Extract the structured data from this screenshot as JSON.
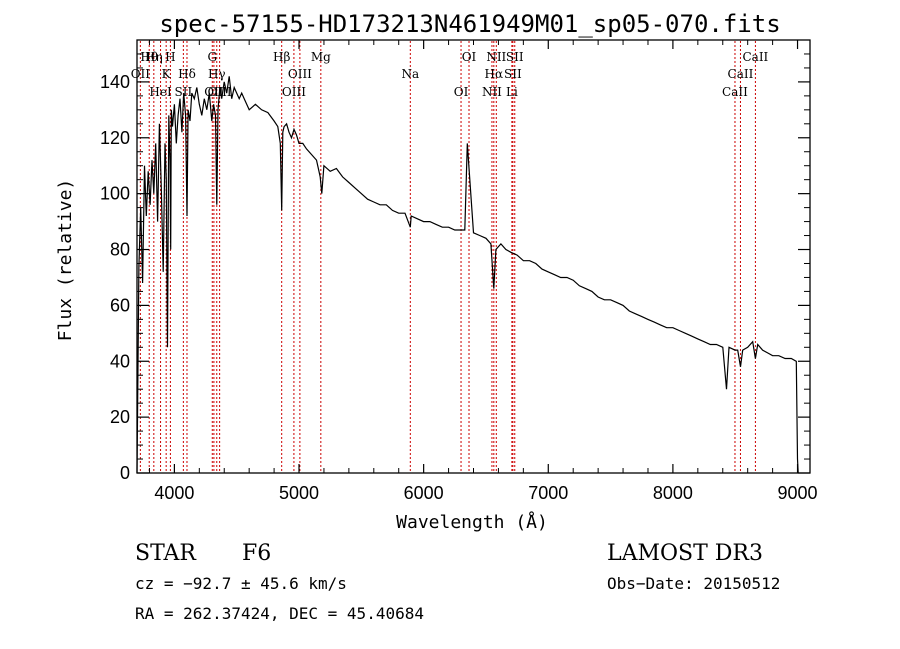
{
  "chart_data": {
    "type": "line",
    "title": "spec-57155-HD173213N461949M01_sp05-070.fits",
    "xlabel": "Wavelength (Å)",
    "ylabel": "Flux (relative)",
    "xlim": [
      3700,
      9100
    ],
    "ylim": [
      0,
      155
    ],
    "xticks": [
      4000,
      5000,
      6000,
      7000,
      8000,
      9000
    ],
    "yticks": [
      0,
      20,
      40,
      60,
      80,
      100,
      120,
      140
    ],
    "series": [
      {
        "name": "Flux",
        "x": [
          3700,
          3715,
          3730,
          3745,
          3760,
          3775,
          3790,
          3805,
          3820,
          3835,
          3850,
          3865,
          3880,
          3895,
          3910,
          3925,
          3935,
          3945,
          3955,
          3965,
          3970,
          3975,
          3985,
          4000,
          4015,
          4030,
          4045,
          4060,
          4075,
          4090,
          4101,
          4110,
          4125,
          4140,
          4160,
          4180,
          4200,
          4220,
          4240,
          4260,
          4280,
          4300,
          4315,
          4330,
          4340,
          4350,
          4365,
          4380,
          4400,
          4420,
          4440,
          4460,
          4480,
          4500,
          4520,
          4540,
          4560,
          4580,
          4600,
          4650,
          4700,
          4750,
          4800,
          4830,
          4850,
          4861,
          4870,
          4880,
          4900,
          4920,
          4940,
          4960,
          4980,
          5000,
          5030,
          5060,
          5100,
          5140,
          5170,
          5183,
          5200,
          5250,
          5300,
          5350,
          5400,
          5450,
          5500,
          5550,
          5600,
          5650,
          5700,
          5750,
          5800,
          5850,
          5893,
          5900,
          5950,
          6000,
          6050,
          6100,
          6150,
          6200,
          6250,
          6300,
          6330,
          6350,
          6400,
          6450,
          6500,
          6540,
          6563,
          6580,
          6620,
          6660,
          6700,
          6750,
          6800,
          6850,
          6900,
          6950,
          7000,
          7050,
          7100,
          7150,
          7200,
          7250,
          7300,
          7350,
          7400,
          7450,
          7500,
          7550,
          7600,
          7650,
          7700,
          7750,
          7800,
          7850,
          7900,
          7950,
          8000,
          8050,
          8100,
          8150,
          8200,
          8250,
          8300,
          8350,
          8400,
          8430,
          8450,
          8498,
          8520,
          8542,
          8560,
          8600,
          8640,
          8662,
          8680,
          8720,
          8760,
          8800,
          8850,
          8900,
          8950,
          8990,
          9000,
          9005
        ],
        "values": [
          0,
          74,
          95,
          68,
          110,
          92,
          108,
          96,
          112,
          100,
          118,
          90,
          125,
          102,
          72,
          118,
          105,
          45,
          128,
          112,
          80,
          130,
          124,
          132,
          118,
          128,
          134,
          122,
          136,
          128,
          92,
          130,
          126,
          136,
          134,
          138,
          132,
          128,
          134,
          130,
          136,
          126,
          132,
          128,
          96,
          130,
          138,
          134,
          140,
          136,
          142,
          134,
          138,
          136,
          134,
          136,
          134,
          132,
          130,
          132,
          130,
          129,
          126,
          124,
          118,
          94,
          122,
          124,
          125,
          122,
          120,
          123,
          121,
          118,
          118,
          116,
          114,
          112,
          106,
          100,
          110,
          108,
          109,
          106,
          104,
          102,
          100,
          98,
          97,
          96,
          96,
          94,
          93,
          93,
          88,
          92,
          91,
          90,
          90,
          89,
          88,
          88,
          87,
          87,
          87,
          118,
          86,
          85,
          84,
          82,
          66,
          80,
          82,
          80,
          79,
          78,
          76,
          76,
          75,
          73,
          72,
          71,
          70,
          70,
          69,
          67,
          66,
          65,
          63,
          62,
          62,
          61,
          60,
          58,
          57,
          56,
          55,
          54,
          53,
          52,
          52,
          51,
          50,
          49,
          48,
          47,
          46,
          46,
          45,
          30,
          45,
          44,
          44,
          38,
          44,
          45,
          47,
          41,
          46,
          44,
          43,
          42,
          42,
          41,
          41,
          40,
          5,
          0
        ]
      }
    ],
    "spectral_lines": [
      {
        "name": "Hθ",
        "wavelength": 3798
      },
      {
        "name": "OII",
        "wavelength": 3727
      },
      {
        "name": "HeI",
        "wavelength": 3889
      },
      {
        "name": "Hη",
        "wavelength": 3835
      },
      {
        "name": "K",
        "wavelength": 3934
      },
      {
        "name": "SII",
        "wavelength": 4072
      },
      {
        "name": "H",
        "wavelength": 3968
      },
      {
        "name": "Hδ",
        "wavelength": 4101
      },
      {
        "name": "OII",
        "wavelength": 4317
      },
      {
        "name": "G",
        "wavelength": 4304
      },
      {
        "name": "Hγ",
        "wavelength": 4340
      },
      {
        "name": "OIII",
        "wavelength": 4363
      },
      {
        "name": "Hβ",
        "wavelength": 4861
      },
      {
        "name": "OIII",
        "wavelength": 5007
      },
      {
        "name": "OIII",
        "wavelength": 4959
      },
      {
        "name": "Mg",
        "wavelength": 5175
      },
      {
        "name": "Na",
        "wavelength": 5893
      },
      {
        "name": "OI",
        "wavelength": 6300
      },
      {
        "name": "OI",
        "wavelength": 6364
      },
      {
        "name": "Hα",
        "wavelength": 6563
      },
      {
        "name": "NII",
        "wavelength": 6548
      },
      {
        "name": "NII",
        "wavelength": 6583
      },
      {
        "name": "SII",
        "wavelength": 6716
      },
      {
        "name": "Li",
        "wavelength": 6708
      },
      {
        "name": "SII",
        "wavelength": 6731
      },
      {
        "name": "CaII",
        "wavelength": 8542
      },
      {
        "name": "CaII",
        "wavelength": 8498
      },
      {
        "name": "CaII",
        "wavelength": 8662
      }
    ]
  },
  "info": {
    "class": "STAR",
    "subclass": "F6",
    "cz": "cz = −92.7 ± 45.6 km/s",
    "coords": "RA = 262.37424, DEC =  45.40684",
    "survey": "LAMOST DR3",
    "obs_date": "Obs−Date: 20150512"
  },
  "colors": {
    "line_marker": "#cc0000",
    "spectrum": "#000000",
    "axes": "#000000"
  }
}
